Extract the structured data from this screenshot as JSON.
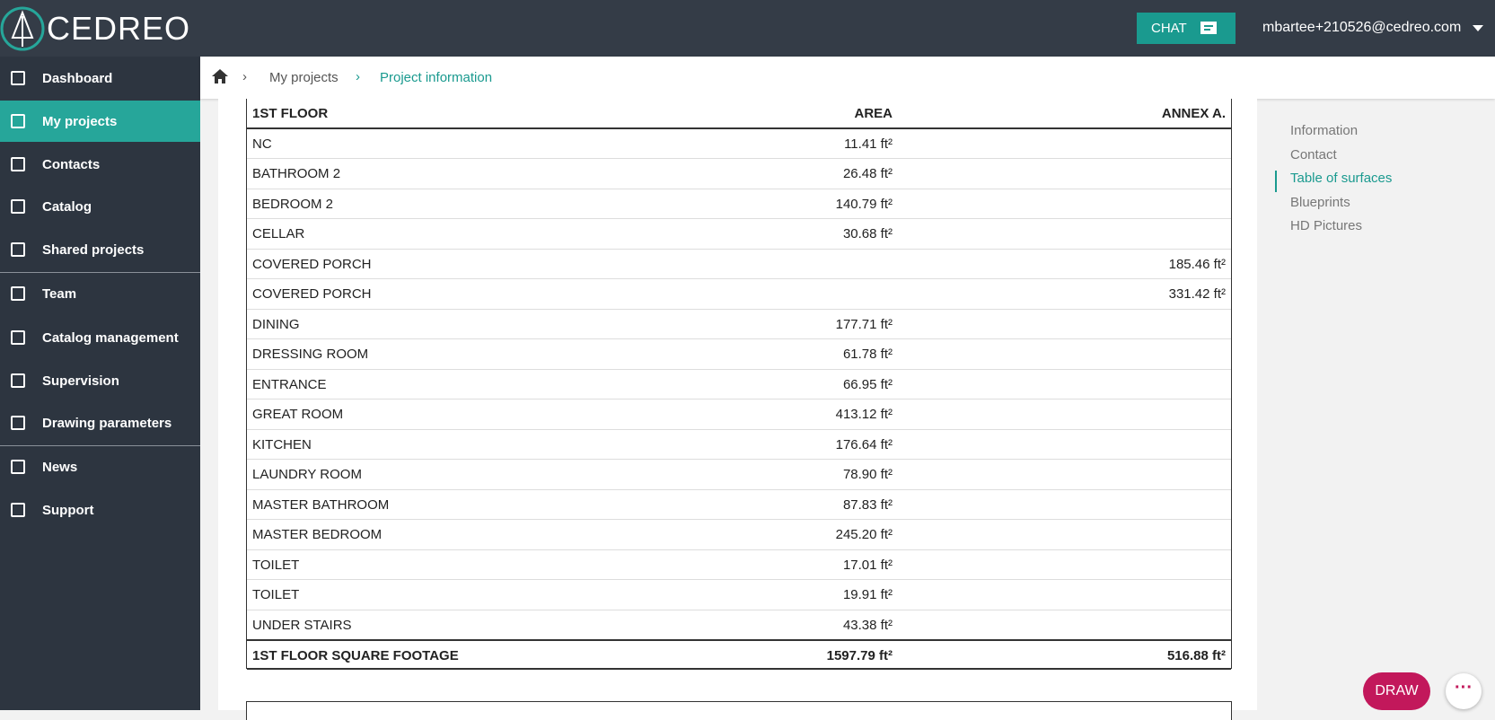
{
  "header": {
    "logo": "CEDREO",
    "chat": "CHAT",
    "user": "mbartee+210526@cedreo.com"
  },
  "sidebar": {
    "items": [
      "Dashboard",
      "My projects",
      "Contacts",
      "Catalog",
      "Shared projects",
      "Team",
      "Catalog management",
      "Supervision",
      "Drawing parameters",
      "News",
      "Support"
    ],
    "active": 1
  },
  "breadcrumb": [
    "My projects",
    "Project information"
  ],
  "table": {
    "header": [
      "1ST FLOOR",
      "AREA",
      "ANNEX A."
    ],
    "rows": [
      [
        "NC",
        "11.41 ft²",
        null
      ],
      [
        "BATHROOM 2",
        "26.48 ft²",
        null
      ],
      [
        "BEDROOM 2",
        "140.79 ft²",
        null
      ],
      [
        "CELLAR",
        "30.68 ft²",
        null
      ],
      [
        "COVERED PORCH",
        null,
        "185.46 ft²"
      ],
      [
        "COVERED PORCH",
        null,
        "331.42 ft²"
      ],
      [
        "DINING",
        "177.71 ft²",
        null
      ],
      [
        "DRESSING ROOM",
        "61.78 ft²",
        null
      ],
      [
        "ENTRANCE",
        "66.95 ft²",
        null
      ],
      [
        "GREAT ROOM",
        "413.12 ft²",
        null
      ],
      [
        "KITCHEN",
        "176.64 ft²",
        null
      ],
      [
        "LAUNDRY ROOM",
        "78.90 ft²",
        null
      ],
      [
        "MASTER BATHROOM",
        "87.83 ft²",
        null
      ],
      [
        "MASTER BEDROOM",
        "245.20 ft²",
        null
      ],
      [
        "TOILET",
        "17.01 ft²",
        null
      ],
      [
        "TOILET",
        "19.91 ft²",
        null
      ],
      [
        "UNDER STAIRS",
        "43.38 ft²",
        null
      ]
    ],
    "footer": [
      "1ST FLOOR SQUARE FOOTAGE",
      "1597.79 ft²",
      "516.88 ft²"
    ]
  },
  "toc": {
    "items": [
      "Information",
      "Contact",
      "Table of surfaces",
      "Blueprints",
      "HD Pictures"
    ],
    "active": 2
  },
  "buttons": {
    "draw": "DRAW"
  }
}
